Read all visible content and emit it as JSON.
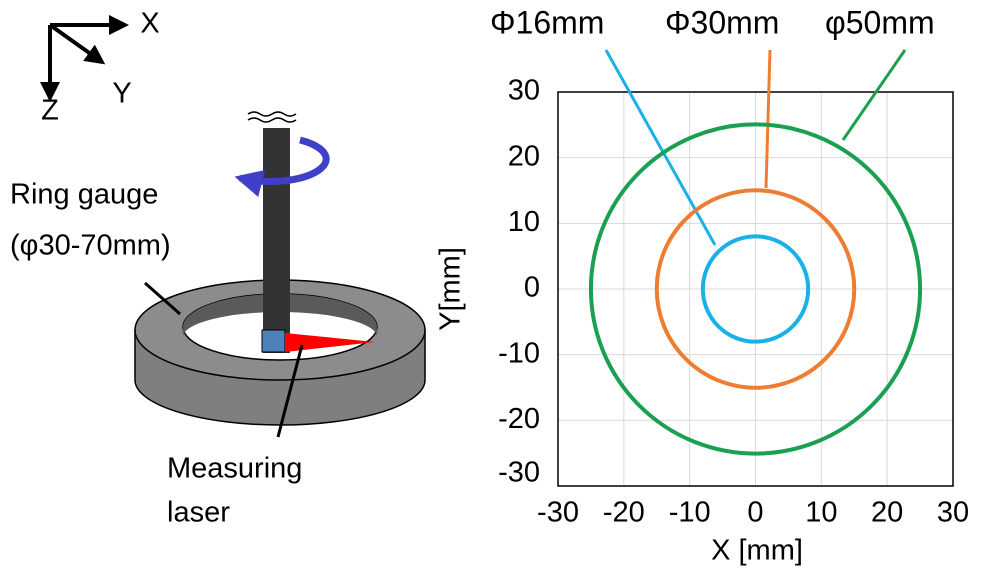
{
  "diagram": {
    "axis_labels": [
      "X",
      "Y",
      "Z"
    ],
    "ring_label": "Ring gauge",
    "ring_size": "(φ30-70mm)",
    "laser_label": [
      "Measuring",
      "laser"
    ]
  },
  "chart_data": {
    "type": "circle",
    "x_label": "X [mm]",
    "y_label": "Y[mm]",
    "series": [
      {
        "name": "Φ16mm",
        "color": "#1ab0e8",
        "diameter": 16
      },
      {
        "name": "Φ30mm",
        "color": "#ed7d31",
        "diameter": 30
      },
      {
        "name": "φ50mm",
        "color": "#1aa050",
        "diameter": 50
      }
    ],
    "xlim": [
      -30,
      30
    ],
    "ylim": [
      -30,
      30
    ],
    "xticks": [
      -30,
      -20,
      -10,
      0,
      10,
      20,
      30
    ],
    "yticks": [
      -30,
      -20,
      -10,
      0,
      10,
      20,
      30
    ],
    "grid": true
  }
}
